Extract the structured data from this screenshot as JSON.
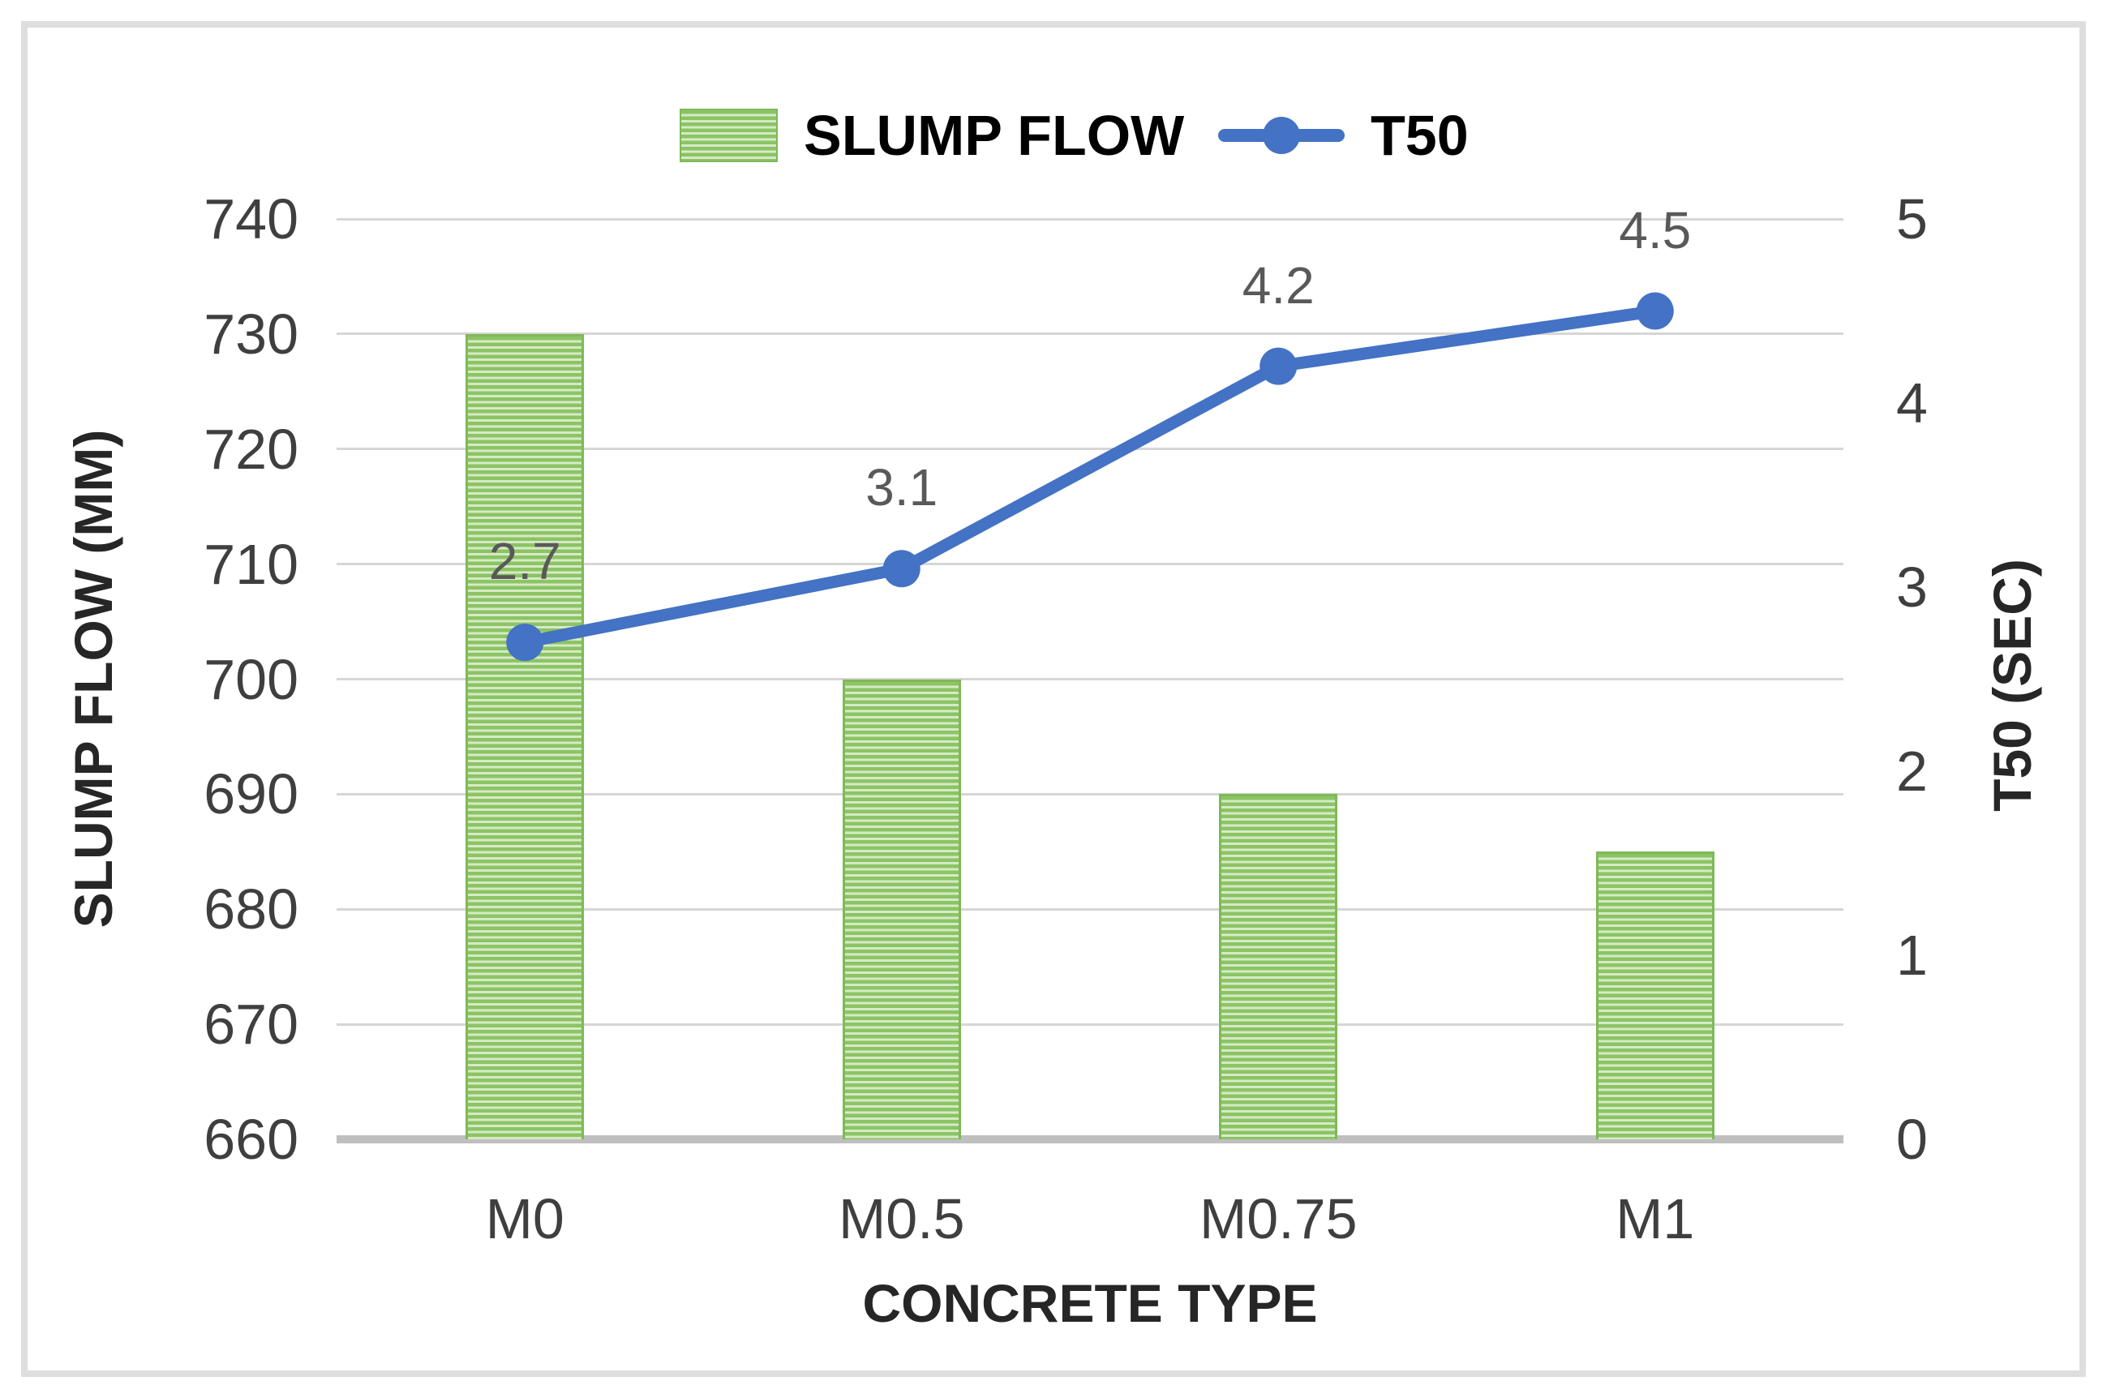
{
  "chart_data": {
    "type": "combo-bar-line",
    "categories": [
      "M0",
      "M0.5",
      "M0.75",
      "M1"
    ],
    "series": [
      {
        "name": "SLUMP FLOW",
        "type": "bar",
        "axis": "left",
        "values": [
          730,
          700,
          690,
          685
        ]
      },
      {
        "name": "T50",
        "type": "line",
        "axis": "right",
        "values": [
          2.7,
          3.1,
          4.2,
          4.5
        ],
        "data_labels": [
          "2.7",
          "3.1",
          "4.2",
          "4.5"
        ]
      }
    ],
    "left_axis": {
      "title": "SLUMP FLOW (MM)",
      "min": 660,
      "max": 740,
      "step": 10,
      "tick_labels": [
        "740",
        "730",
        "720",
        "710",
        "700",
        "690",
        "680",
        "670",
        "660"
      ]
    },
    "right_axis": {
      "title": "T50 (SEC)",
      "min": 0,
      "max": 5,
      "step": 1,
      "tick_labels": [
        "5",
        "4",
        "3",
        "2",
        "1",
        "0"
      ]
    },
    "x_axis": {
      "title": "CONCRETE TYPE"
    },
    "legend_position": "top",
    "grid": true
  },
  "colors": {
    "bar_stripe_dark": "#8cc464",
    "bar_stripe_light": "#d6eac6",
    "bar_border": "#7fb958",
    "line_blue": "#4472c4",
    "data_label_gray": "#595959",
    "tick_text": "#3f3f3f",
    "gridline": "#d6d6d6",
    "axis_baseline": "#bfbfbf",
    "chart_border": "#dedede"
  }
}
